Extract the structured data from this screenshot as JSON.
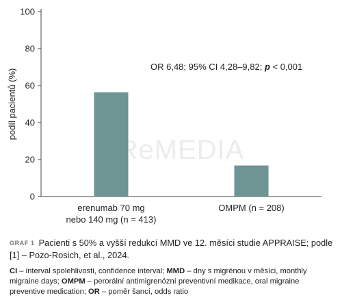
{
  "chart_data": {
    "type": "bar",
    "categories": [
      "erenumab 70 mg\nnebo 140 mg (n = 413)",
      "OMPM (n = 208)"
    ],
    "values": [
      56.4,
      16.8
    ],
    "ylabel": "podíl pacientů (%)",
    "ylim": [
      0,
      100
    ],
    "yticks": [
      0,
      20,
      40,
      60,
      80,
      100
    ],
    "bar_color": "#6e9494",
    "grid": false,
    "annotation": {
      "pre": "OR 6,48; 95% CI 4,28–9,82; ",
      "p": "p",
      "post": " < 0,001"
    }
  },
  "watermark": "ReMEDIA",
  "caption": {
    "label": "GRAF 1",
    "text": "Pacienti s 50% a vyšší redukcí MMD ve 12. měsíci studie APPRAISE; podle [1] – Pozo-Rosich, et al., 2024."
  },
  "notes": [
    {
      "abbr": "CI",
      "text": " – interval spolehlivosti, confidence interval; "
    },
    {
      "abbr": "MMD",
      "text": " – dny s migrénou v měsíci, monthly migraine days; "
    },
    {
      "abbr": "OMPM",
      "text": " – perorální antimigrenózní preventivní medikace, oral migraine preventive medication; "
    },
    {
      "abbr": "OR",
      "text": " – poměr šancí, odds ratio"
    }
  ]
}
